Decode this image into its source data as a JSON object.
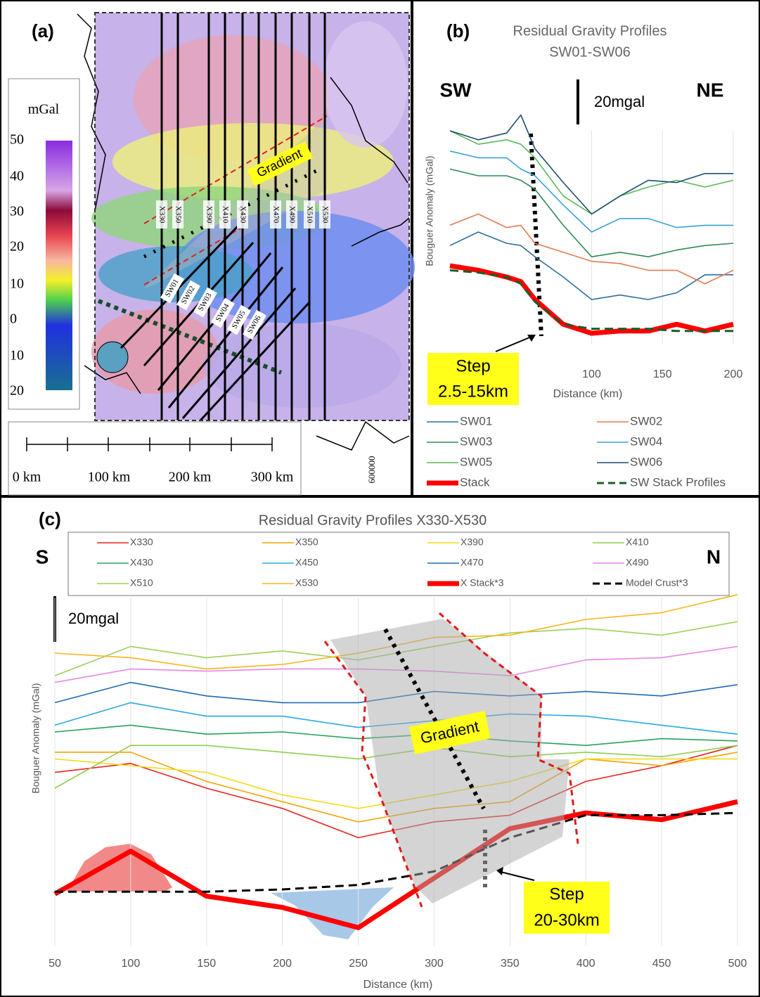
{
  "map": {
    "panel_label": "(a)",
    "colorbar_title": "mGal",
    "colorbar_labels": [
      "50",
      "40",
      "30",
      "20",
      "10",
      "0",
      "10",
      "20"
    ],
    "profile_labels": [
      "X330",
      "X350",
      "X390",
      "X410",
      "X430",
      "X470",
      "X490",
      "X510",
      "X530"
    ],
    "sw_labels": [
      "SW01",
      "SW02",
      "SW03",
      "SW04",
      "SW05",
      "SW06"
    ],
    "annotation": "Gradient",
    "scale_labels": [
      "0 km",
      "100 km",
      "200 km",
      "300 km"
    ],
    "coordinate": "600000"
  },
  "chart_data": [
    {
      "type": "line",
      "panel_label": "(b)",
      "title": "Residual Gravity Profiles",
      "subtitle": "SW01-SW06",
      "left_label": "SW",
      "right_label": "NE",
      "scale_label": "20mgal",
      "y_label": "Bouguer Anomaly (mGal)",
      "x_label": "Distance (km)",
      "step_label": [
        "Step",
        "2.5-15km"
      ],
      "x": [
        0,
        20,
        40,
        50,
        60,
        80,
        100,
        120,
        140,
        160,
        180,
        200
      ],
      "xlim": [
        0,
        200
      ],
      "xticks": [
        100,
        150,
        200
      ],
      "ylim": [
        0,
        105
      ],
      "grid": true,
      "series": [
        {
          "name": "SW01",
          "color": "#2e6e9e",
          "values": [
            44,
            50,
            45,
            44,
            39,
            30,
            20,
            22,
            20,
            23,
            31,
            31
          ]
        },
        {
          "name": "SW02",
          "color": "#e07b50",
          "values": [
            53,
            58,
            52,
            53,
            45,
            41,
            37,
            36,
            33,
            33,
            27,
            33
          ]
        },
        {
          "name": "SW03",
          "color": "#2e8b57",
          "values": [
            78,
            75,
            75,
            73,
            69,
            53,
            39,
            41,
            39,
            42,
            44,
            45
          ]
        },
        {
          "name": "SW04",
          "color": "#3aa0d8",
          "values": [
            86,
            83,
            83,
            78,
            75,
            62,
            50,
            56,
            56,
            52,
            53,
            53
          ]
        },
        {
          "name": "SW05",
          "color": "#5cb85c",
          "values": [
            95,
            89,
            91,
            89,
            83,
            66,
            58,
            66,
            70,
            73,
            70,
            73
          ]
        },
        {
          "name": "SW06",
          "color": "#1f4e6e",
          "values": [
            95,
            91,
            94,
            102,
            87,
            72,
            58,
            66,
            73,
            72,
            76,
            76
          ]
        },
        {
          "name": "Stack",
          "color": "#ff0000",
          "style": "thick",
          "values": [
            35,
            33,
            30,
            28,
            20,
            9,
            5,
            6,
            6,
            9,
            6,
            9
          ]
        },
        {
          "name": "SW Stack Profiles",
          "color": "#1a5c2a",
          "style": "dashed",
          "values": [
            33,
            32,
            30,
            27,
            19,
            9,
            7,
            7,
            7,
            6,
            6,
            6
          ]
        }
      ]
    },
    {
      "type": "line",
      "panel_label": "(c)",
      "title": "Residual Gravity Profiles X330-X530",
      "left_label": "S",
      "right_label": "N",
      "scale_label": "20mgal",
      "y_label": "Bouguer Anomaly (mGal)",
      "x_label": "Distance (km)",
      "gradient_label": "Gradient",
      "step_label": [
        "Step",
        "20-30km"
      ],
      "x": [
        50,
        100,
        150,
        200,
        250,
        300,
        350,
        400,
        450,
        500
      ],
      "xlim": [
        50,
        500
      ],
      "xticks": [
        50,
        100,
        150,
        200,
        250,
        300,
        350,
        400,
        450,
        500
      ],
      "ylim": [
        0,
        160
      ],
      "grid": true,
      "series": [
        {
          "name": "X330",
          "color": "#e8231f",
          "values": [
            77,
            81,
            70,
            61,
            48,
            55,
            58,
            73,
            80,
            89
          ]
        },
        {
          "name": "X350",
          "color": "#f5a300",
          "values": [
            86,
            86,
            73,
            64,
            55,
            61,
            64,
            83,
            80,
            86
          ]
        },
        {
          "name": "X390",
          "color": "#f2dc1a",
          "values": [
            83,
            80,
            77,
            67,
            61,
            67,
            73,
            83,
            83,
            83
          ]
        },
        {
          "name": "X410",
          "color": "#8fcf4f",
          "values": [
            70,
            89,
            89,
            86,
            83,
            88,
            84,
            86,
            84,
            89
          ]
        },
        {
          "name": "X430",
          "color": "#27a35a",
          "values": [
            95,
            98,
            94,
            95,
            92,
            94,
            91,
            89,
            92,
            91
          ]
        },
        {
          "name": "X450",
          "color": "#29a9e0",
          "values": [
            98,
            108,
            102,
            102,
            97,
            100,
            103,
            102,
            98,
            94
          ]
        },
        {
          "name": "X470",
          "color": "#1f6bb5",
          "values": [
            108,
            117,
            111,
            108,
            108,
            113,
            111,
            113,
            111,
            116
          ]
        },
        {
          "name": "X490",
          "color": "#ea86e6",
          "values": [
            117,
            123,
            122,
            123,
            123,
            122,
            120,
            127,
            128,
            133
          ]
        },
        {
          "name": "X510",
          "color": "#9bd15a",
          "values": [
            120,
            133,
            128,
            131,
            127,
            133,
            139,
            141,
            138,
            144
          ]
        },
        {
          "name": "X530",
          "color": "#f6b51c",
          "values": [
            130,
            128,
            123,
            125,
            130,
            137,
            138,
            145,
            148,
            156
          ]
        },
        {
          "name": "X Stack*3",
          "color": "#ff0000",
          "style": "thick",
          "values": [
            23,
            42,
            22,
            17,
            8,
            30,
            52,
            59,
            56,
            64
          ]
        },
        {
          "name": "Model Crust*3",
          "color": "#000000",
          "style": "dashed",
          "values": [
            24,
            24,
            24,
            25,
            27,
            33,
            48,
            58,
            58,
            59
          ]
        }
      ]
    }
  ]
}
